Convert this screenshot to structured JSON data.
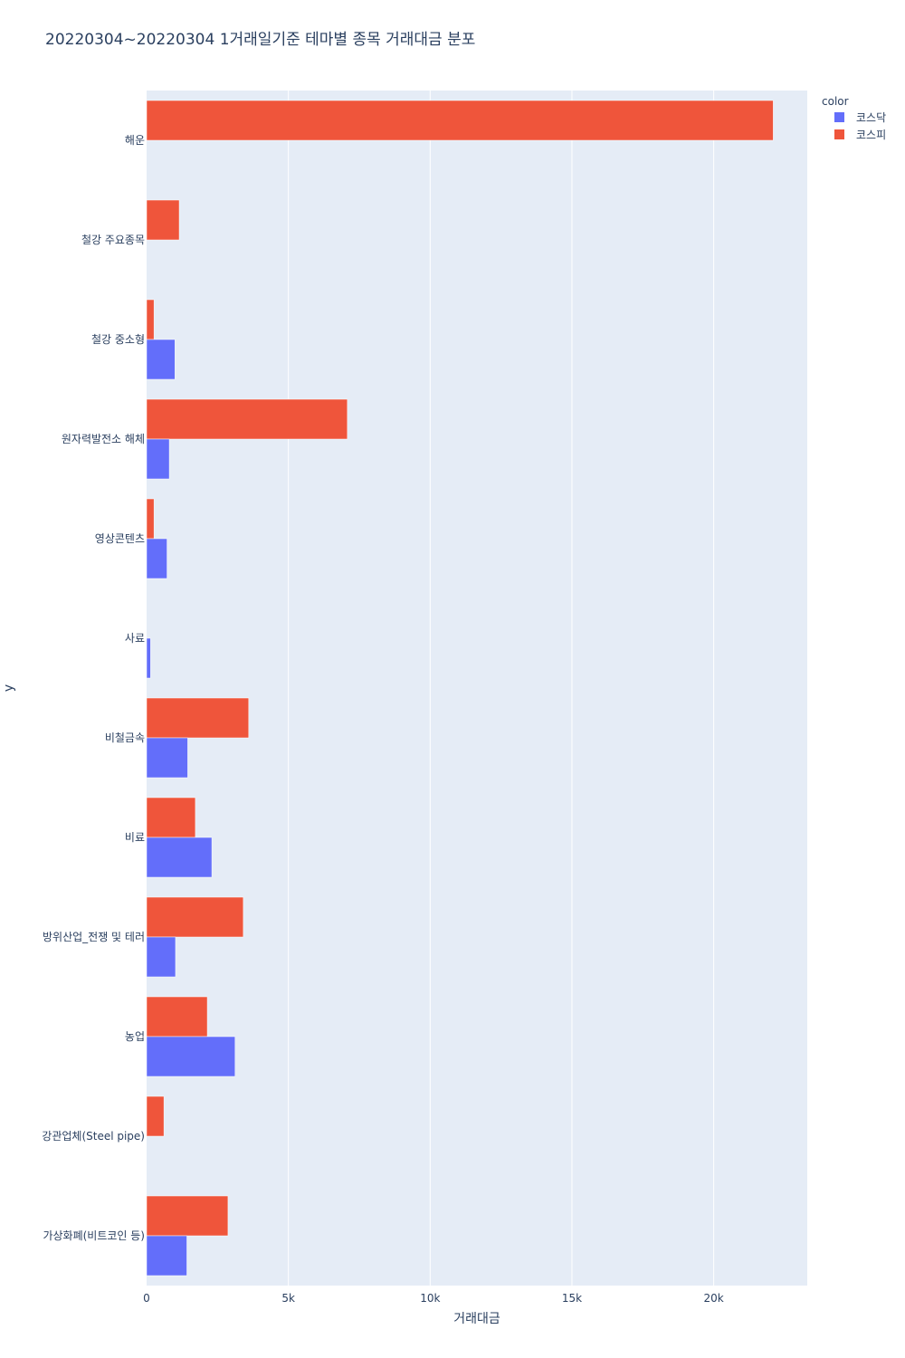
{
  "chart_data": {
    "type": "bar",
    "orientation": "horizontal",
    "title": "20220304~20220304 1거래일기준 테마별 종목 거래대금 분포",
    "xlabel": "거래대금",
    "ylabel": "y",
    "xlim": [
      0,
      23300
    ],
    "xticks": [
      {
        "value": 0,
        "label": "0"
      },
      {
        "value": 5000,
        "label": "5k"
      },
      {
        "value": 10000,
        "label": "10k"
      },
      {
        "value": 15000,
        "label": "15k"
      },
      {
        "value": 20000,
        "label": "20k"
      }
    ],
    "grid": true,
    "legend_title": "color",
    "legend_position": "top-right",
    "categories": [
      "해운",
      "철강 주요종목",
      "철강 중소형",
      "원자력발전소 해체",
      "영상콘텐츠",
      "사료",
      "비철금속",
      "비료",
      "방위산업_전쟁 및 테러",
      "농업",
      "강관업체(Steel pipe)",
      "가상화폐(비트코인 등)"
    ],
    "series": [
      {
        "name": "코스닥",
        "color": "#636efa",
        "values": [
          0,
          0,
          1000,
          800,
          720,
          140,
          1450,
          2300,
          1020,
          3120,
          0,
          1420
        ]
      },
      {
        "name": "코스피",
        "color": "#ef553b",
        "values": [
          22100,
          1150,
          260,
          7080,
          260,
          0,
          3600,
          1720,
          3410,
          2140,
          610,
          2870
        ]
      }
    ]
  }
}
